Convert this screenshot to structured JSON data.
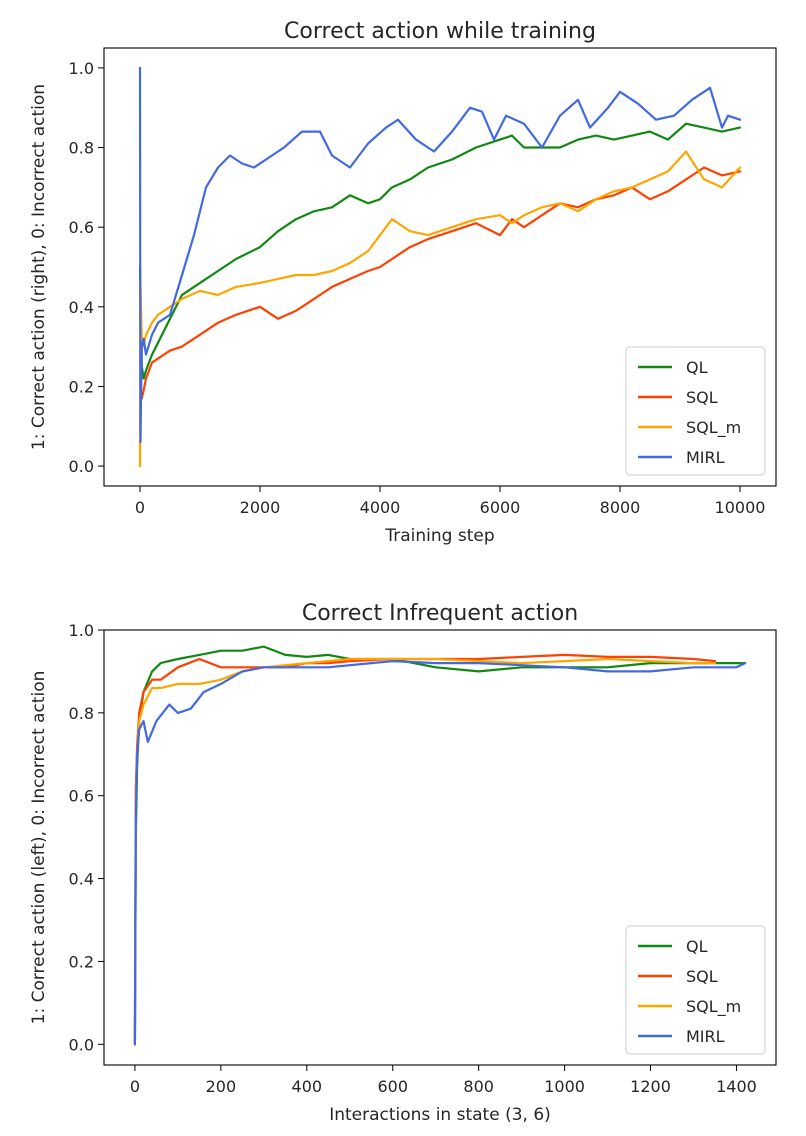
{
  "chart_data": [
    {
      "type": "line",
      "title": "Correct action while training",
      "xlabel": "Training step",
      "ylabel": "1: Correct action (right), 0: Incorrect action",
      "xlim": [
        -600,
        10600
      ],
      "ylim": [
        -0.05,
        1.05
      ],
      "xticks": [
        0,
        2000,
        4000,
        6000,
        8000,
        10000
      ],
      "xtick_labels": [
        "0",
        "2000",
        "4000",
        "6000",
        "8000",
        "10000"
      ],
      "yticks": [
        0.0,
        0.2,
        0.4,
        0.6,
        0.8,
        1.0
      ],
      "ytick_labels": [
        "0.0",
        "0.2",
        "0.4",
        "0.6",
        "0.8",
        "1.0"
      ],
      "legend_position": "lower-right",
      "series": [
        {
          "name": "QL",
          "color": "#118811",
          "x": [
            0,
            5,
            15,
            30,
            60,
            100,
            200,
            300,
            500,
            700,
            1000,
            1300,
            1600,
            2000,
            2300,
            2600,
            2900,
            3200,
            3500,
            3800,
            4000,
            4200,
            4500,
            4800,
            5200,
            5600,
            6000,
            6200,
            6400,
            6700,
            7000,
            7300,
            7600,
            7900,
            8200,
            8500,
            8800,
            9100,
            9400,
            9700,
            10000
          ],
          "y": [
            0.5,
            0.45,
            0.36,
            0.25,
            0.22,
            0.24,
            0.28,
            0.31,
            0.37,
            0.43,
            0.46,
            0.49,
            0.52,
            0.55,
            0.59,
            0.62,
            0.64,
            0.65,
            0.68,
            0.66,
            0.67,
            0.7,
            0.72,
            0.75,
            0.77,
            0.8,
            0.82,
            0.83,
            0.8,
            0.8,
            0.8,
            0.82,
            0.83,
            0.82,
            0.83,
            0.84,
            0.82,
            0.86,
            0.85,
            0.84,
            0.85
          ]
        },
        {
          "name": "SQL",
          "color": "#ff4000",
          "x": [
            0,
            5,
            15,
            30,
            60,
            100,
            200,
            300,
            500,
            700,
            1000,
            1300,
            1600,
            2000,
            2300,
            2600,
            2900,
            3200,
            3500,
            3800,
            4000,
            4200,
            4500,
            4800,
            5200,
            5600,
            6000,
            6200,
            6400,
            6700,
            7000,
            7300,
            7600,
            7900,
            8200,
            8500,
            8800,
            9100,
            9400,
            9700,
            10000
          ],
          "y": [
            0.04,
            0.14,
            0.18,
            0.17,
            0.19,
            0.22,
            0.26,
            0.27,
            0.29,
            0.3,
            0.33,
            0.36,
            0.38,
            0.4,
            0.37,
            0.39,
            0.42,
            0.45,
            0.47,
            0.49,
            0.5,
            0.52,
            0.55,
            0.57,
            0.59,
            0.61,
            0.58,
            0.62,
            0.6,
            0.63,
            0.66,
            0.65,
            0.67,
            0.68,
            0.7,
            0.67,
            0.69,
            0.72,
            0.75,
            0.73,
            0.74
          ]
        },
        {
          "name": "SQL_m",
          "color": "#ffa500",
          "x": [
            0,
            5,
            15,
            30,
            60,
            100,
            200,
            300,
            500,
            700,
            1000,
            1300,
            1600,
            2000,
            2300,
            2600,
            2900,
            3200,
            3500,
            3800,
            4000,
            4200,
            4500,
            4800,
            5200,
            5600,
            6000,
            6200,
            6400,
            6700,
            7000,
            7300,
            7600,
            7900,
            8200,
            8500,
            8800,
            9100,
            9400,
            9700,
            10000
          ],
          "y": [
            0.0,
            0.47,
            0.41,
            0.32,
            0.3,
            0.33,
            0.36,
            0.38,
            0.4,
            0.42,
            0.44,
            0.43,
            0.45,
            0.46,
            0.47,
            0.48,
            0.48,
            0.49,
            0.51,
            0.54,
            0.58,
            0.62,
            0.59,
            0.58,
            0.6,
            0.62,
            0.63,
            0.61,
            0.63,
            0.65,
            0.66,
            0.64,
            0.67,
            0.69,
            0.7,
            0.72,
            0.74,
            0.79,
            0.72,
            0.7,
            0.75
          ]
        },
        {
          "name": "MIRL",
          "color": "#4169e1",
          "x": [
            0,
            3,
            8,
            15,
            30,
            60,
            100,
            200,
            300,
            500,
            700,
            900,
            1100,
            1300,
            1500,
            1700,
            1900,
            2100,
            2400,
            2700,
            3000,
            3200,
            3500,
            3800,
            4100,
            4300,
            4600,
            4900,
            5200,
            5500,
            5700,
            5900,
            6100,
            6400,
            6700,
            7000,
            7300,
            7500,
            7800,
            8000,
            8300,
            8600,
            8900,
            9200,
            9500,
            9600,
            9700,
            9800,
            10000
          ],
          "y": [
            1.0,
            0.55,
            0.06,
            0.15,
            0.3,
            0.32,
            0.28,
            0.33,
            0.36,
            0.38,
            0.48,
            0.58,
            0.7,
            0.75,
            0.78,
            0.76,
            0.75,
            0.77,
            0.8,
            0.84,
            0.84,
            0.78,
            0.75,
            0.81,
            0.85,
            0.87,
            0.82,
            0.79,
            0.84,
            0.9,
            0.89,
            0.82,
            0.88,
            0.86,
            0.8,
            0.88,
            0.92,
            0.85,
            0.9,
            0.94,
            0.91,
            0.87,
            0.88,
            0.92,
            0.95,
            0.9,
            0.85,
            0.88,
            0.87
          ]
        }
      ]
    },
    {
      "type": "line",
      "title": "Correct Infrequent action",
      "xlabel": "Interactions in state (3, 6)",
      "ylabel": "1: Correct action (left), 0: Incorrect action",
      "xlim": [
        -72,
        1492
      ],
      "ylim": [
        -0.05,
        1.0
      ],
      "xticks": [
        0,
        200,
        400,
        600,
        800,
        1000,
        1200,
        1400
      ],
      "xtick_labels": [
        "0",
        "200",
        "400",
        "600",
        "800",
        "1000",
        "1200",
        "1400"
      ],
      "yticks": [
        0.0,
        0.2,
        0.4,
        0.6,
        0.8,
        1.0
      ],
      "ytick_labels": [
        "0.0",
        "0.2",
        "0.4",
        "0.6",
        "0.8",
        "1.0"
      ],
      "legend_position": "lower-right",
      "series": [
        {
          "name": "QL",
          "color": "#118811",
          "x": [
            0,
            2,
            5,
            10,
            20,
            40,
            60,
            100,
            150,
            200,
            250,
            300,
            350,
            400,
            450,
            500,
            600,
            700,
            800,
            900,
            1000,
            1100,
            1200,
            1300,
            1400,
            1420
          ],
          "y": [
            0.0,
            0.5,
            0.67,
            0.78,
            0.85,
            0.9,
            0.92,
            0.93,
            0.94,
            0.95,
            0.95,
            0.96,
            0.94,
            0.935,
            0.94,
            0.93,
            0.93,
            0.91,
            0.9,
            0.91,
            0.91,
            0.91,
            0.92,
            0.92,
            0.92,
            0.92
          ]
        },
        {
          "name": "SQL",
          "color": "#ff4000",
          "x": [
            0,
            2,
            5,
            10,
            20,
            40,
            60,
            100,
            150,
            200,
            250,
            300,
            350,
            400,
            450,
            500,
            600,
            700,
            800,
            900,
            1000,
            1100,
            1200,
            1300,
            1350
          ],
          "y": [
            0.0,
            0.62,
            0.72,
            0.8,
            0.85,
            0.88,
            0.88,
            0.91,
            0.93,
            0.91,
            0.91,
            0.91,
            0.91,
            0.92,
            0.92,
            0.925,
            0.93,
            0.93,
            0.93,
            0.935,
            0.94,
            0.935,
            0.935,
            0.93,
            0.925
          ]
        },
        {
          "name": "SQL_m",
          "color": "#ffa500",
          "x": [
            0,
            2,
            5,
            10,
            20,
            40,
            60,
            100,
            150,
            200,
            250,
            300,
            350,
            400,
            450,
            500,
            600,
            700,
            800,
            900,
            1000,
            1100,
            1200,
            1300,
            1350
          ],
          "y": [
            0.0,
            0.6,
            0.7,
            0.78,
            0.82,
            0.86,
            0.86,
            0.87,
            0.87,
            0.88,
            0.9,
            0.91,
            0.915,
            0.92,
            0.925,
            0.93,
            0.93,
            0.93,
            0.925,
            0.92,
            0.925,
            0.93,
            0.925,
            0.92,
            0.92
          ]
        },
        {
          "name": "MIRL",
          "color": "#4169e1",
          "x": [
            0,
            2,
            5,
            10,
            20,
            30,
            50,
            80,
            100,
            130,
            160,
            200,
            250,
            300,
            350,
            400,
            450,
            500,
            600,
            700,
            800,
            900,
            1000,
            1100,
            1200,
            1300,
            1400,
            1420
          ],
          "y": [
            0.0,
            0.55,
            0.7,
            0.76,
            0.78,
            0.73,
            0.78,
            0.82,
            0.8,
            0.81,
            0.85,
            0.87,
            0.9,
            0.91,
            0.91,
            0.91,
            0.91,
            0.915,
            0.925,
            0.92,
            0.92,
            0.915,
            0.91,
            0.9,
            0.9,
            0.91,
            0.91,
            0.92
          ]
        }
      ]
    }
  ]
}
